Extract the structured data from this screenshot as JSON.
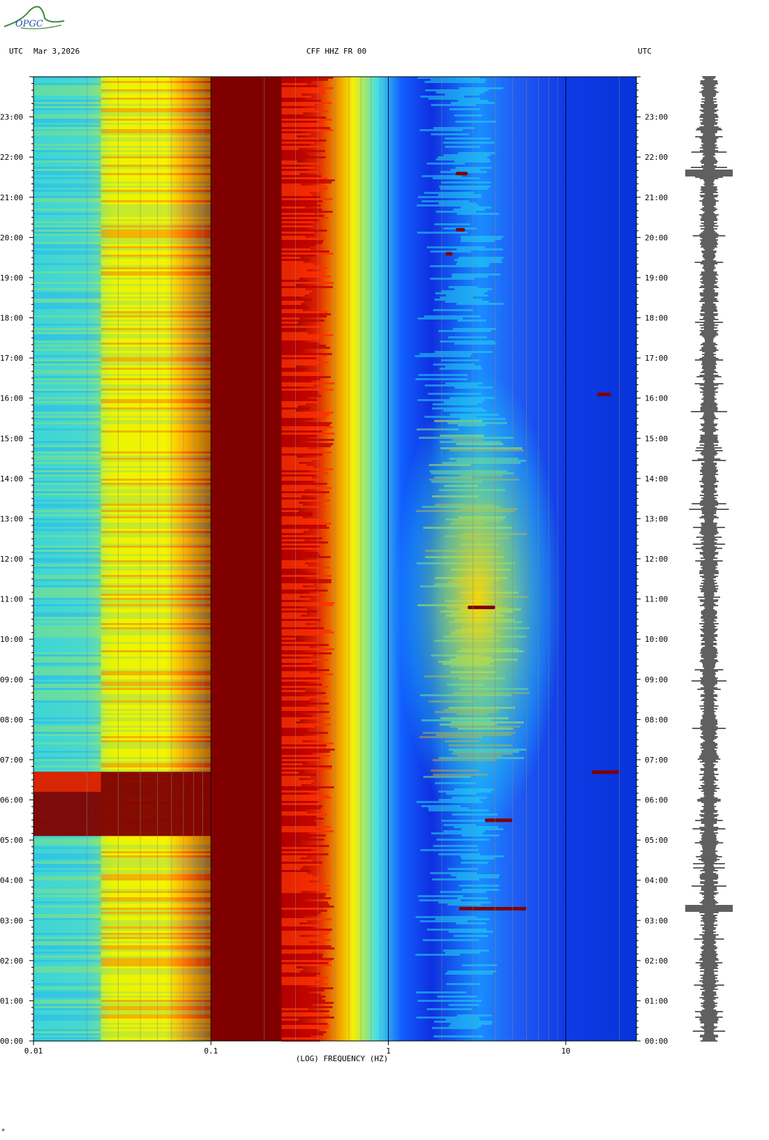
{
  "logo_text": "OPGC",
  "header": {
    "left_tz": "UTC",
    "date": "Mar 3,2026",
    "station": "CFF HHZ FR 00",
    "right_tz": "UTC"
  },
  "footer_mark": "*",
  "chart_data": {
    "type": "heatmap",
    "title": "CFF HHZ FR 00",
    "xlabel": "(LOG) FREQUENCY (HZ)",
    "ylabel": "UTC",
    "x_scale": "log",
    "xlim": [
      0.01,
      25
    ],
    "x_ticks": [
      {
        "value": 0.01,
        "label": "0.01"
      },
      {
        "value": 0.1,
        "label": "0.1"
      },
      {
        "value": 1,
        "label": "1"
      },
      {
        "value": 10,
        "label": "10"
      }
    ],
    "y_ticks_hours": [
      {
        "hour": 0,
        "label": "00:00"
      },
      {
        "hour": 1,
        "label": "01:00"
      },
      {
        "hour": 2,
        "label": "02:00"
      },
      {
        "hour": 3,
        "label": "03:00"
      },
      {
        "hour": 4,
        "label": "04:00"
      },
      {
        "hour": 5,
        "label": "05:00"
      },
      {
        "hour": 6,
        "label": "06:00"
      },
      {
        "hour": 7,
        "label": "07:00"
      },
      {
        "hour": 8,
        "label": "08:00"
      },
      {
        "hour": 9,
        "label": "09:00"
      },
      {
        "hour": 10,
        "label": "10:00"
      },
      {
        "hour": 11,
        "label": "11:00"
      },
      {
        "hour": 12,
        "label": "12:00"
      },
      {
        "hour": 13,
        "label": "13:00"
      },
      {
        "hour": 14,
        "label": "14:00"
      },
      {
        "hour": 15,
        "label": "15:00"
      },
      {
        "hour": 16,
        "label": "16:00"
      },
      {
        "hour": 17,
        "label": "17:00"
      },
      {
        "hour": 18,
        "label": "18:00"
      },
      {
        "hour": 19,
        "label": "19:00"
      },
      {
        "hour": 20,
        "label": "20:00"
      },
      {
        "hour": 21,
        "label": "21:00"
      },
      {
        "hour": 22,
        "label": "22:00"
      },
      {
        "hour": 23,
        "label": "23:00"
      }
    ],
    "colormap": [
      "#0000cc",
      "#0050ff",
      "#22d4f0",
      "#7fe07f",
      "#f7f700",
      "#ff8a00",
      "#ff2000",
      "#800000"
    ],
    "events": [
      {
        "hour": 3.3,
        "freq_min": 2.5,
        "freq_max": 6,
        "level": "high"
      },
      {
        "hour": 5.5,
        "freq_min": 3.5,
        "freq_max": 5,
        "level": "high"
      },
      {
        "hour": 6.7,
        "freq_min": 14,
        "freq_max": 20,
        "level": "high"
      },
      {
        "hour": 10.8,
        "freq_min": 2.8,
        "freq_max": 4,
        "level": "high"
      },
      {
        "hour": 16.1,
        "freq_min": 15,
        "freq_max": 18,
        "level": "high"
      },
      {
        "hour": 19.6,
        "freq_min": 2.1,
        "freq_max": 2.3,
        "level": "high"
      },
      {
        "hour": 20.2,
        "freq_min": 2.4,
        "freq_max": 2.7,
        "level": "high"
      },
      {
        "hour": 21.6,
        "freq_min": 2.4,
        "freq_max": 2.8,
        "level": "high"
      }
    ],
    "grid": true
  }
}
